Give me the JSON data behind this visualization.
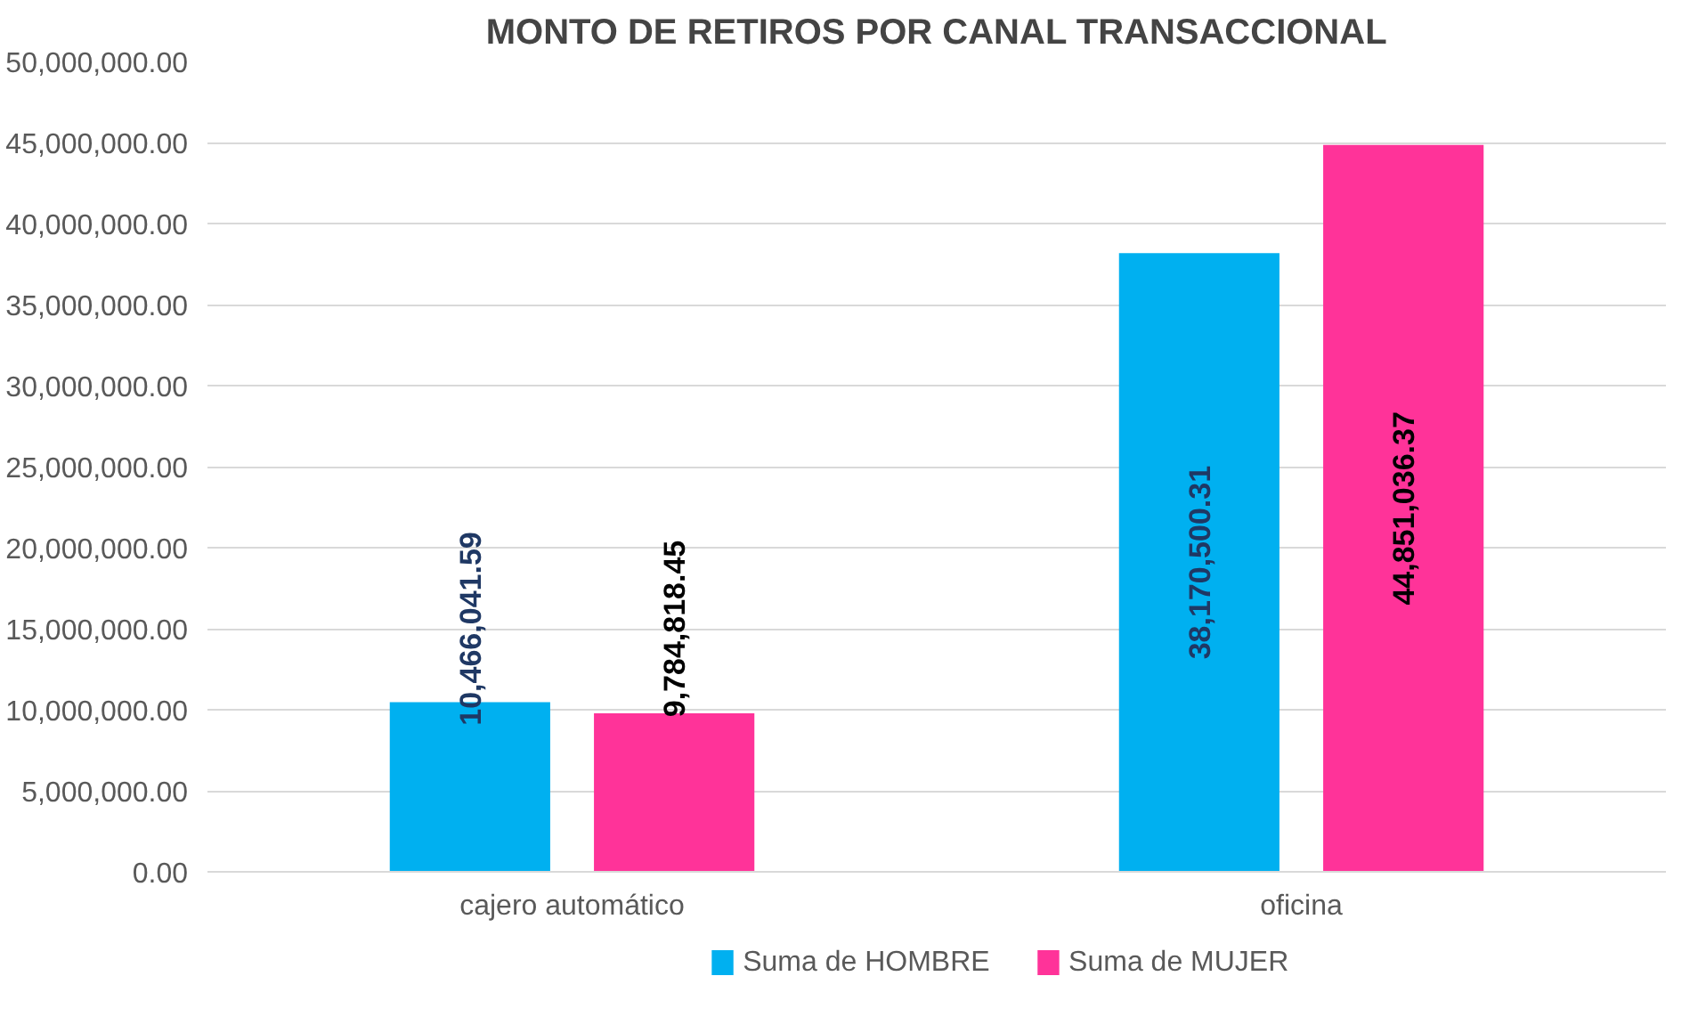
{
  "chart_data": {
    "type": "bar",
    "title": "MONTO DE RETIROS POR CANAL TRANSACCIONAL",
    "categories": [
      "cajero automático",
      "oficina"
    ],
    "series": [
      {
        "name": "Suma de HOMBRE",
        "color": "#00b0f0",
        "values": [
          10466041.59,
          38170500.31
        ],
        "value_labels": [
          "10,466,041.59",
          "38,170,500.31"
        ]
      },
      {
        "name": "Suma de MUJER",
        "color": "#ff3399",
        "values": [
          9784818.45,
          44851036.37
        ],
        "value_labels": [
          "9,784,818.45",
          "44,851,036.37"
        ]
      }
    ],
    "ylim": [
      0,
      50000000
    ],
    "yticks": [
      {
        "value": 0,
        "label": "0.00"
      },
      {
        "value": 5000000,
        "label": "5,000,000.00"
      },
      {
        "value": 10000000,
        "label": "10,000,000.00"
      },
      {
        "value": 15000000,
        "label": "15,000,000.00"
      },
      {
        "value": 20000000,
        "label": "20,000,000.00"
      },
      {
        "value": 25000000,
        "label": "25,000,000.00"
      },
      {
        "value": 30000000,
        "label": "30,000,000.00"
      },
      {
        "value": 35000000,
        "label": "35,000,000.00"
      },
      {
        "value": 40000000,
        "label": "40,000,000.00"
      },
      {
        "value": 45000000,
        "label": "45,000,000.00"
      },
      {
        "value": 50000000,
        "label": "50,000,000.00"
      }
    ],
    "grid": "y",
    "legend": "bottom"
  }
}
